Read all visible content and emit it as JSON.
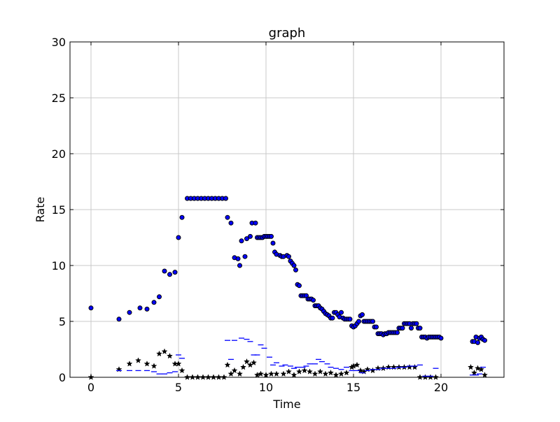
{
  "chart_data": {
    "type": "scatter",
    "title": "graph",
    "xlabel": "Time",
    "ylabel": "Rate",
    "xlim": [
      -1.2,
      23.6
    ],
    "ylim": [
      0,
      30
    ],
    "xticks": [
      0,
      5,
      10,
      15,
      20
    ],
    "yticks": [
      0,
      5,
      10,
      15,
      20,
      25,
      30
    ],
    "grid": true,
    "legend": "none",
    "series": [
      {
        "marker": "circle",
        "color": "#0000ff",
        "points": [
          [
            0.0,
            6.2
          ],
          [
            1.6,
            5.2
          ],
          [
            2.2,
            5.8
          ],
          [
            2.8,
            6.2
          ],
          [
            3.2,
            6.1
          ],
          [
            3.6,
            6.7
          ],
          [
            3.9,
            7.2
          ],
          [
            4.2,
            9.5
          ],
          [
            4.5,
            9.2
          ],
          [
            4.8,
            9.4
          ],
          [
            5.0,
            12.5
          ],
          [
            5.2,
            14.3
          ],
          [
            5.5,
            16.0
          ],
          [
            5.7,
            16.0
          ],
          [
            5.9,
            16.0
          ],
          [
            6.1,
            16.0
          ],
          [
            6.3,
            16.0
          ],
          [
            6.5,
            16.0
          ],
          [
            6.7,
            16.0
          ],
          [
            6.9,
            16.0
          ],
          [
            7.1,
            16.0
          ],
          [
            7.3,
            16.0
          ],
          [
            7.5,
            16.0
          ],
          [
            7.7,
            16.0
          ],
          [
            7.8,
            14.3
          ],
          [
            8.0,
            13.8
          ],
          [
            8.2,
            10.7
          ],
          [
            8.4,
            10.6
          ],
          [
            8.5,
            10.0
          ],
          [
            8.6,
            12.2
          ],
          [
            8.8,
            10.8
          ],
          [
            8.9,
            12.4
          ],
          [
            9.1,
            12.6
          ],
          [
            9.2,
            13.8
          ],
          [
            9.4,
            13.8
          ],
          [
            9.5,
            12.5
          ],
          [
            9.6,
            12.5
          ],
          [
            9.7,
            12.5
          ],
          [
            9.8,
            12.5
          ],
          [
            9.9,
            12.6
          ],
          [
            10.0,
            12.6
          ],
          [
            10.1,
            12.6
          ],
          [
            10.2,
            12.6
          ],
          [
            10.3,
            12.6
          ],
          [
            10.4,
            12.0
          ],
          [
            10.5,
            11.2
          ],
          [
            10.6,
            11.0
          ],
          [
            10.8,
            10.9
          ],
          [
            10.9,
            10.8
          ],
          [
            11.0,
            10.8
          ],
          [
            11.2,
            10.9
          ],
          [
            11.3,
            10.8
          ],
          [
            11.4,
            10.4
          ],
          [
            11.5,
            10.2
          ],
          [
            11.6,
            10.0
          ],
          [
            11.7,
            9.6
          ],
          [
            11.8,
            8.3
          ],
          [
            11.9,
            8.2
          ],
          [
            12.0,
            7.3
          ],
          [
            12.1,
            7.3
          ],
          [
            12.2,
            7.3
          ],
          [
            12.3,
            7.3
          ],
          [
            12.4,
            7.0
          ],
          [
            12.5,
            7.0
          ],
          [
            12.6,
            7.0
          ],
          [
            12.7,
            6.9
          ],
          [
            12.8,
            6.4
          ],
          [
            12.9,
            6.4
          ],
          [
            13.0,
            6.4
          ],
          [
            13.1,
            6.2
          ],
          [
            13.2,
            6.1
          ],
          [
            13.3,
            5.9
          ],
          [
            13.4,
            5.7
          ],
          [
            13.5,
            5.6
          ],
          [
            13.6,
            5.5
          ],
          [
            13.7,
            5.3
          ],
          [
            13.8,
            5.3
          ],
          [
            13.9,
            5.8
          ],
          [
            14.0,
            5.8
          ],
          [
            14.1,
            5.6
          ],
          [
            14.2,
            5.4
          ],
          [
            14.3,
            5.8
          ],
          [
            14.4,
            5.3
          ],
          [
            14.5,
            5.2
          ],
          [
            14.6,
            5.2
          ],
          [
            14.7,
            5.2
          ],
          [
            14.8,
            5.2
          ],
          [
            14.9,
            4.6
          ],
          [
            15.0,
            4.5
          ],
          [
            15.1,
            4.6
          ],
          [
            15.2,
            4.8
          ],
          [
            15.3,
            5.0
          ],
          [
            15.4,
            5.5
          ],
          [
            15.5,
            5.6
          ],
          [
            15.6,
            5.0
          ],
          [
            15.7,
            5.0
          ],
          [
            15.8,
            5.0
          ],
          [
            15.9,
            5.0
          ],
          [
            16.0,
            5.0
          ],
          [
            16.1,
            5.0
          ],
          [
            16.2,
            4.5
          ],
          [
            16.3,
            4.5
          ],
          [
            16.4,
            3.9
          ],
          [
            16.5,
            3.9
          ],
          [
            16.6,
            3.9
          ],
          [
            16.7,
            3.8
          ],
          [
            16.8,
            3.9
          ],
          [
            16.9,
            3.9
          ],
          [
            17.0,
            4.0
          ],
          [
            17.1,
            4.0
          ],
          [
            17.2,
            4.0
          ],
          [
            17.3,
            4.0
          ],
          [
            17.4,
            4.0
          ],
          [
            17.5,
            4.0
          ],
          [
            17.6,
            4.4
          ],
          [
            17.7,
            4.4
          ],
          [
            17.8,
            4.4
          ],
          [
            17.9,
            4.8
          ],
          [
            18.0,
            4.8
          ],
          [
            18.1,
            4.8
          ],
          [
            18.2,
            4.8
          ],
          [
            18.3,
            4.4
          ],
          [
            18.4,
            4.8
          ],
          [
            18.5,
            4.8
          ],
          [
            18.6,
            4.8
          ],
          [
            18.7,
            4.4
          ],
          [
            18.8,
            4.4
          ],
          [
            18.9,
            3.6
          ],
          [
            19.0,
            3.6
          ],
          [
            19.1,
            3.6
          ],
          [
            19.2,
            3.5
          ],
          [
            19.3,
            3.6
          ],
          [
            19.4,
            3.6
          ],
          [
            19.5,
            3.6
          ],
          [
            19.6,
            3.6
          ],
          [
            19.7,
            3.6
          ],
          [
            19.8,
            3.6
          ],
          [
            19.9,
            3.6
          ],
          [
            20.0,
            3.5
          ],
          [
            21.8,
            3.2
          ],
          [
            21.9,
            3.2
          ],
          [
            22.0,
            3.6
          ],
          [
            22.1,
            3.1
          ],
          [
            22.2,
            3.5
          ],
          [
            22.3,
            3.6
          ],
          [
            22.4,
            3.4
          ],
          [
            22.5,
            3.3
          ]
        ]
      },
      {
        "marker": "star",
        "color": "#000000",
        "points": [
          [
            0.0,
            0.0
          ],
          [
            1.6,
            0.7
          ],
          [
            2.2,
            1.2
          ],
          [
            2.7,
            1.5
          ],
          [
            3.2,
            1.2
          ],
          [
            3.6,
            1.0
          ],
          [
            3.9,
            2.1
          ],
          [
            4.2,
            2.3
          ],
          [
            4.5,
            1.9
          ],
          [
            4.8,
            1.2
          ],
          [
            5.0,
            1.2
          ],
          [
            5.2,
            0.6
          ],
          [
            5.5,
            0.0
          ],
          [
            5.8,
            0.0
          ],
          [
            6.1,
            0.0
          ],
          [
            6.4,
            0.0
          ],
          [
            6.7,
            0.0
          ],
          [
            7.0,
            0.0
          ],
          [
            7.3,
            0.0
          ],
          [
            7.6,
            0.0
          ],
          [
            7.8,
            1.1
          ],
          [
            8.0,
            0.3
          ],
          [
            8.2,
            0.6
          ],
          [
            8.5,
            0.3
          ],
          [
            8.7,
            0.9
          ],
          [
            8.9,
            1.4
          ],
          [
            9.1,
            1.1
          ],
          [
            9.3,
            1.3
          ],
          [
            9.5,
            0.2
          ],
          [
            9.7,
            0.3
          ],
          [
            10.0,
            0.2
          ],
          [
            10.3,
            0.3
          ],
          [
            10.6,
            0.3
          ],
          [
            11.0,
            0.3
          ],
          [
            11.3,
            0.5
          ],
          [
            11.6,
            0.2
          ],
          [
            11.9,
            0.5
          ],
          [
            12.2,
            0.6
          ],
          [
            12.5,
            0.5
          ],
          [
            12.8,
            0.3
          ],
          [
            13.1,
            0.5
          ],
          [
            13.4,
            0.3
          ],
          [
            13.7,
            0.4
          ],
          [
            14.0,
            0.2
          ],
          [
            14.3,
            0.3
          ],
          [
            14.6,
            0.4
          ],
          [
            14.9,
            0.9
          ],
          [
            15.0,
            1.0
          ],
          [
            15.2,
            1.1
          ],
          [
            15.4,
            0.6
          ],
          [
            15.6,
            0.5
          ],
          [
            15.8,
            0.7
          ],
          [
            16.1,
            0.6
          ],
          [
            16.4,
            0.8
          ],
          [
            16.7,
            0.8
          ],
          [
            17.0,
            0.9
          ],
          [
            17.3,
            0.9
          ],
          [
            17.6,
            0.9
          ],
          [
            17.9,
            0.9
          ],
          [
            18.2,
            0.9
          ],
          [
            18.5,
            0.9
          ],
          [
            18.8,
            0.0
          ],
          [
            19.1,
            0.0
          ],
          [
            19.4,
            0.0
          ],
          [
            19.7,
            0.0
          ],
          [
            21.7,
            0.9
          ],
          [
            21.9,
            0.4
          ],
          [
            22.1,
            0.8
          ],
          [
            22.3,
            0.7
          ],
          [
            22.5,
            0.2
          ]
        ]
      },
      {
        "marker": "hline",
        "color": "#0000ff",
        "points": [
          [
            1.6,
            0.6
          ],
          [
            2.2,
            0.6
          ],
          [
            2.7,
            0.6
          ],
          [
            3.2,
            0.6
          ],
          [
            3.6,
            0.5
          ],
          [
            3.9,
            0.3
          ],
          [
            4.2,
            0.3
          ],
          [
            4.5,
            0.4
          ],
          [
            4.8,
            0.5
          ],
          [
            5.0,
            2.0
          ],
          [
            5.2,
            1.7
          ],
          [
            7.8,
            3.3
          ],
          [
            8.0,
            1.6
          ],
          [
            8.2,
            3.3
          ],
          [
            8.6,
            3.5
          ],
          [
            8.9,
            3.4
          ],
          [
            9.1,
            3.2
          ],
          [
            9.3,
            2.0
          ],
          [
            9.5,
            2.0
          ],
          [
            9.7,
            2.9
          ],
          [
            9.9,
            2.6
          ],
          [
            10.2,
            1.8
          ],
          [
            10.4,
            1.1
          ],
          [
            10.6,
            1.3
          ],
          [
            10.9,
            1.0
          ],
          [
            11.1,
            1.1
          ],
          [
            11.4,
            1.0
          ],
          [
            11.6,
            0.8
          ],
          [
            11.8,
            0.9
          ],
          [
            12.1,
            0.9
          ],
          [
            12.3,
            1.0
          ],
          [
            12.5,
            1.2
          ],
          [
            12.8,
            1.2
          ],
          [
            13.0,
            1.6
          ],
          [
            13.2,
            1.4
          ],
          [
            13.5,
            1.2
          ],
          [
            13.7,
            0.9
          ],
          [
            14.0,
            0.8
          ],
          [
            14.3,
            0.7
          ],
          [
            14.6,
            0.9
          ],
          [
            14.9,
            0.6
          ],
          [
            15.2,
            0.6
          ],
          [
            15.5,
            0.4
          ],
          [
            15.8,
            0.6
          ],
          [
            16.1,
            0.7
          ],
          [
            16.4,
            0.7
          ],
          [
            16.7,
            0.8
          ],
          [
            17.0,
            0.8
          ],
          [
            17.3,
            0.8
          ],
          [
            17.6,
            0.9
          ],
          [
            17.9,
            0.9
          ],
          [
            18.2,
            1.0
          ],
          [
            18.5,
            1.0
          ],
          [
            18.8,
            1.1
          ],
          [
            19.1,
            0.1
          ],
          [
            19.4,
            0.1
          ],
          [
            19.7,
            0.8
          ],
          [
            21.8,
            0.2
          ],
          [
            22.0,
            0.2
          ],
          [
            22.2,
            0.3
          ],
          [
            22.4,
            0.9
          ]
        ]
      }
    ]
  }
}
